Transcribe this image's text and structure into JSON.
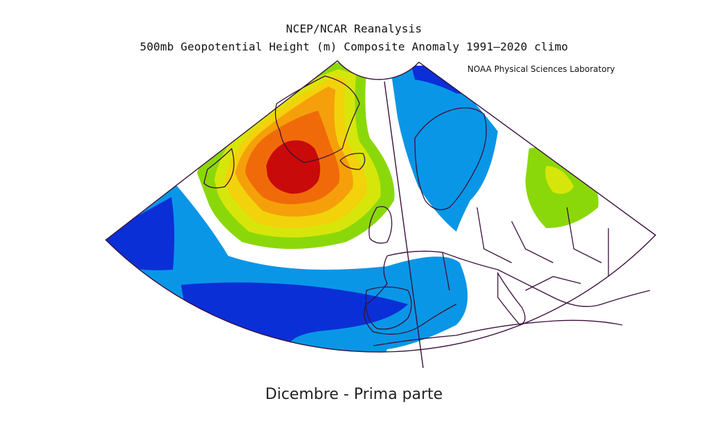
{
  "title_line1": "NCEP/NCAR Reanalysis",
  "title_line2": "500mb Geopotential Height (m) Composite Anomaly 1991–2020 climo",
  "credit": "NOAA Physical Sciences Laboratory",
  "caption": "Dicembre - Prima parte",
  "map": {
    "projection": "conic sector",
    "field": "500mb geopotential height anomaly",
    "colors": {
      "strong_negative": "#0a2fd6",
      "negative": "#0a96e6",
      "neutral": "#ffffff",
      "weak_positive": "#8bd80a",
      "positive_yellowgreen": "#d7e60a",
      "positive_yellow": "#f2d20a",
      "positive_orange_light": "#f5a00a",
      "positive_orange": "#f06a0a",
      "strong_positive": "#c80a0a",
      "coastline": "#3a0f3a"
    }
  }
}
